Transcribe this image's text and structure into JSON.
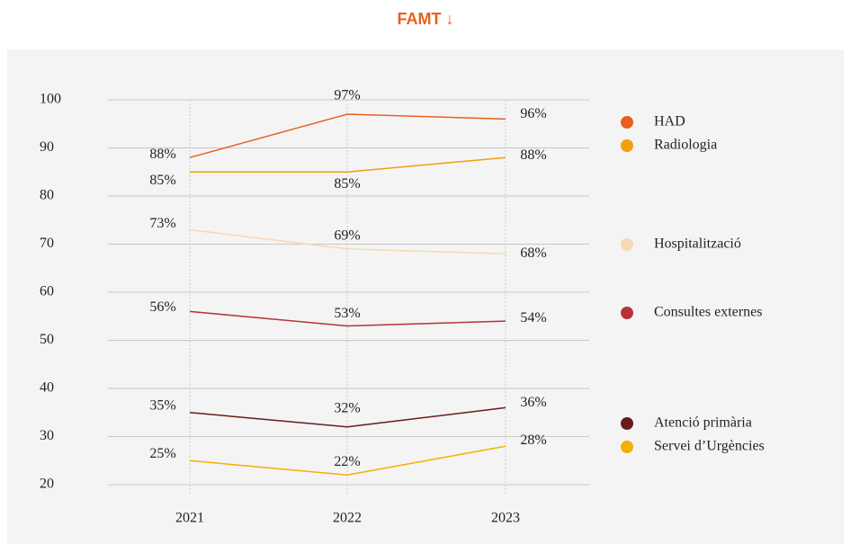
{
  "chart_data": {
    "type": "line",
    "title": "FAMT ↓",
    "x": [
      "2021",
      "2022",
      "2023"
    ],
    "ylim": [
      20,
      100
    ],
    "yticks": [
      20,
      30,
      40,
      50,
      60,
      70,
      80,
      90,
      100
    ],
    "grid": true,
    "series": [
      {
        "name": "HAD",
        "color": "#e8601c",
        "values": [
          88,
          97,
          96
        ],
        "value_labels": [
          "88%",
          "97%",
          "96%"
        ]
      },
      {
        "name": "Radiologia",
        "color": "#f0a010",
        "values": [
          85,
          85,
          88
        ],
        "value_labels": [
          "85%",
          "85%",
          "88%"
        ]
      },
      {
        "name": "Hospitalització",
        "color": "#f5d9b0",
        "values": [
          73,
          69,
          68
        ],
        "value_labels": [
          "73%",
          "69%",
          "68%"
        ]
      },
      {
        "name": "Consultes externes",
        "color": "#b5333a",
        "values": [
          56,
          53,
          54
        ],
        "value_labels": [
          "56%",
          "53%",
          "54%"
        ]
      },
      {
        "name": "Atenció primària",
        "color": "#6b1a1a",
        "values": [
          35,
          32,
          36
        ],
        "value_labels": [
          "35%",
          "32%",
          "36%"
        ]
      },
      {
        "name": "Servei d’Urgències",
        "color": "#f5b000",
        "values": [
          25,
          22,
          28
        ],
        "value_labels": [
          "25%",
          "22%",
          "28%"
        ]
      }
    ]
  }
}
